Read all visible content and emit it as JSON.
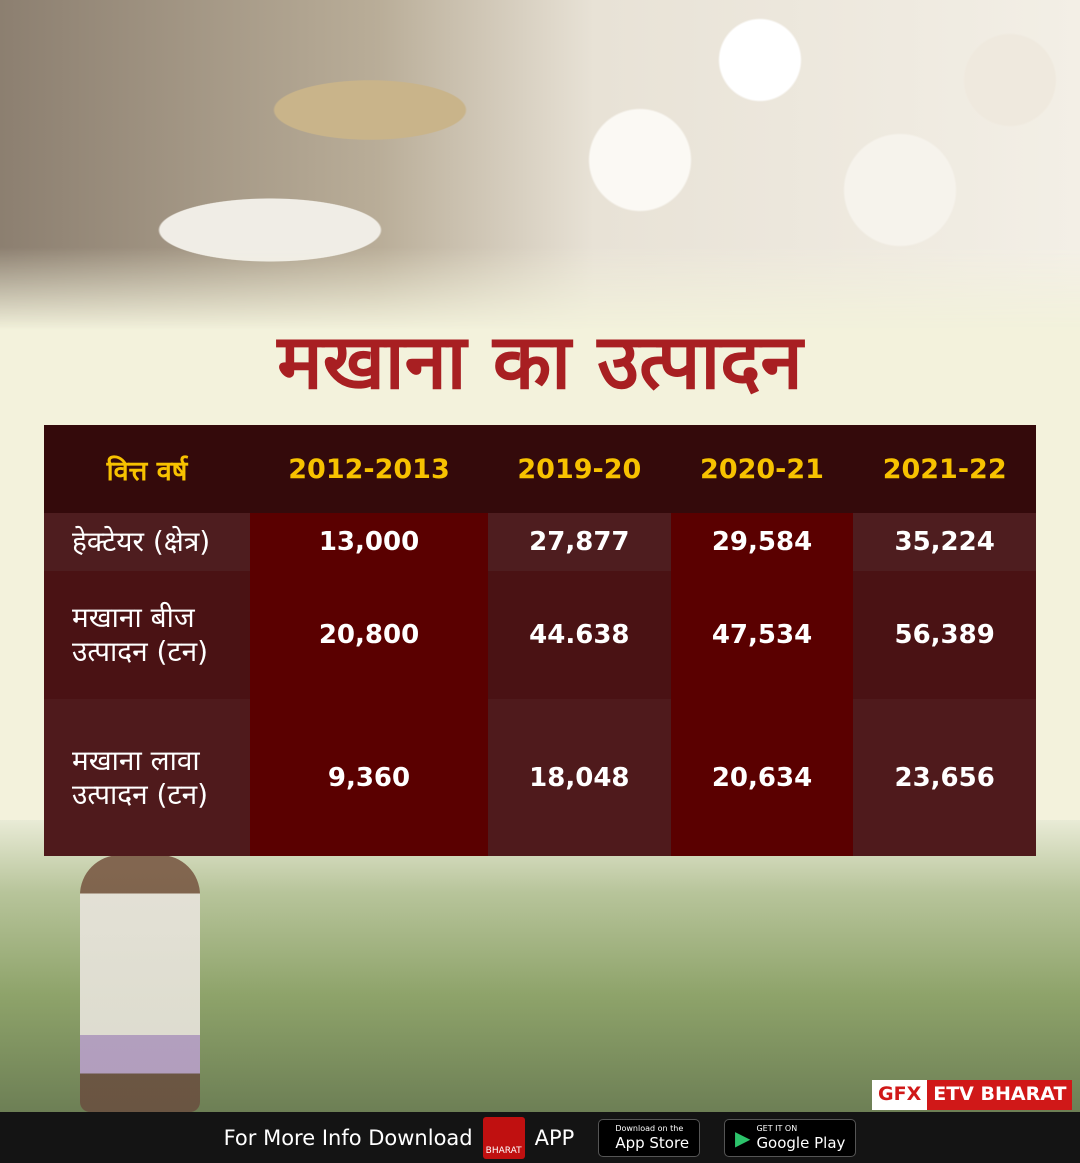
{
  "title": "मखाना का उत्पादन",
  "chart_data": {
    "type": "table",
    "columns": [
      "वित्त वर्ष",
      "2012-2013",
      "2019-20",
      "2020-21",
      "2021-22"
    ],
    "rows": [
      {
        "label": "हेक्टेयर (क्षेत्र)",
        "values": [
          "13,000",
          "27,877",
          "29,584",
          "35,224"
        ]
      },
      {
        "label": "मखाना बीज उत्पादन (टन)",
        "values": [
          "20,800",
          "44.638",
          "47,534",
          "56,389"
        ]
      },
      {
        "label": "मखाना लावा उत्पादन (टन)",
        "values": [
          "9,360",
          "18,048",
          "20,634",
          "23,656"
        ]
      }
    ]
  },
  "colors": {
    "title": "#a81f22",
    "header_text": "#f7c200",
    "header_bg": "#340a0b",
    "highlight_col": "#5a0000"
  },
  "badge": {
    "gfx": "GFX",
    "brand": "ETV BHARAT"
  },
  "footer": {
    "text": "For More Info Download",
    "logo": "BHARAT",
    "app": "APP",
    "appstore_small": "Download on the",
    "appstore": "App Store",
    "play_small": "GET IT ON",
    "play": "Google Play"
  }
}
